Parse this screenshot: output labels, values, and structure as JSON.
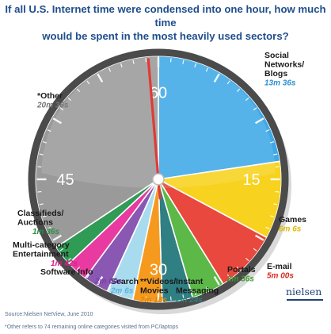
{
  "title_lines": [
    "If all U.S. Internet time were condensed into one hour, how much time",
    "would be spent in the most heavily used sectors?"
  ],
  "source": "Source:Nielsen NetView, June 2010",
  "footnote": "*Other refers to 74 remaining online categories visited from PC/laptops",
  "brand": "nielsen",
  "colors": {
    "title": "#1f4e8c",
    "clock_face": "#9a9a9a",
    "clock_rim": "#4b4b4b",
    "hand": "#e23a36"
  },
  "chart_data": {
    "type": "pie",
    "title": "If all U.S. Internet time were condensed into one hour, how much time would be spent in the most heavily used sectors?",
    "unit": "minutes of one hour",
    "clock_numbers": [
      "60",
      "15",
      "30",
      "45"
    ],
    "slices": [
      {
        "name": "Social Networks/ Blogs",
        "name_lines": [
          "Social",
          "Networks/",
          "Blogs"
        ],
        "display": "13m 36s",
        "minutes": 13.6,
        "color": "#3fa9e8",
        "value_color": "#2b8fd6"
      },
      {
        "name": "Games",
        "name_lines": [
          "Games"
        ],
        "display": "6m 6s",
        "minutes": 6.1,
        "color": "#f7d21e",
        "value_color": "#e0b800"
      },
      {
        "name": "E-mail",
        "name_lines": [
          "E-mail"
        ],
        "display": "5m 00s",
        "minutes": 5.0,
        "color": "#e8483d",
        "value_color": "#d62b1e"
      },
      {
        "name": "Portals",
        "name_lines": [
          "Portals"
        ],
        "display": "2m 36s",
        "minutes": 2.6,
        "color": "#5cb947",
        "value_color": "#3f9a2a"
      },
      {
        "name": "Instant Messaging",
        "name_lines": [
          "Instant",
          "Messaging"
        ],
        "display": "2m 24s",
        "minutes": 2.4,
        "color": "#2f7f83",
        "value_color": "#2f7f83"
      },
      {
        "name": "Videos/ Movies",
        "name_lines": [
          "**Videos/",
          "Movies"
        ],
        "display": "2m 18s",
        "minutes": 2.3,
        "color": "#f59a1f",
        "value_color": "#e0860a"
      },
      {
        "name": "Search",
        "name_lines": [
          "Search"
        ],
        "display": "2m 6s",
        "minutes": 2.1,
        "color": "#a9dbef",
        "value_color": "#5bb3dc"
      },
      {
        "name": "Software Info",
        "name_lines": [
          "Software Info"
        ],
        "display": "2m 00s",
        "minutes": 2.0,
        "color": "#8a57b3",
        "value_color": "#7a3fa8"
      },
      {
        "name": "Multi-category Entertainment",
        "name_lines": [
          "Multi-category",
          "Entertainment"
        ],
        "display": "1m 42s",
        "minutes": 1.7,
        "color": "#e83aa0",
        "value_color": "#d6208c"
      },
      {
        "name": "Classifieds/ Auctions",
        "name_lines": [
          "Classifieds/",
          "Auctions"
        ],
        "display": "1m 36s",
        "minutes": 1.6,
        "color": "#2f9b55",
        "value_color": "#2f8f45"
      },
      {
        "name": "*Other",
        "name_lines": [
          "*Other"
        ],
        "display": "20m 36s",
        "minutes": 20.6,
        "color": "#9a9a9a",
        "value_color": "#777777"
      }
    ]
  }
}
